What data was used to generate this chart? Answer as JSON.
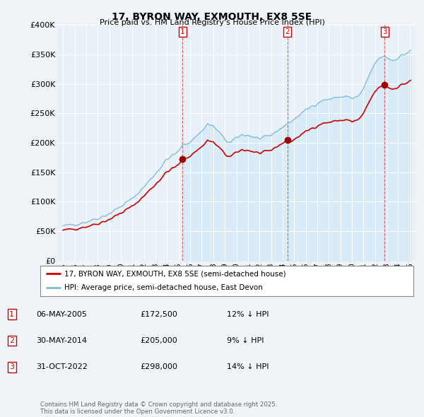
{
  "title": "17, BYRON WAY, EXMOUTH, EX8 5SE",
  "subtitle": "Price paid vs. HM Land Registry's House Price Index (HPI)",
  "sale_color": "#cc0000",
  "hpi_color": "#7ab8d8",
  "hpi_fill_color": "#cce0f0",
  "background_color": "#f0f4f8",
  "plot_bg": "#e8f0f8",
  "ylim": [
    0,
    400000
  ],
  "yticks": [
    0,
    50000,
    100000,
    150000,
    200000,
    250000,
    300000,
    350000,
    400000
  ],
  "ytick_labels": [
    "£0",
    "£50K",
    "£100K",
    "£150K",
    "£200K",
    "£250K",
    "£300K",
    "£350K",
    "£400K"
  ],
  "sale_dates": [
    2005.35,
    2014.42,
    2022.83
  ],
  "sale_prices": [
    172500,
    205000,
    298000
  ],
  "sale_numbers": [
    "1",
    "2",
    "3"
  ],
  "legend_sale": "17, BYRON WAY, EXMOUTH, EX8 5SE (semi-detached house)",
  "legend_hpi": "HPI: Average price, semi-detached house, East Devon",
  "table_rows": [
    [
      "1",
      "06-MAY-2005",
      "£172,500",
      "12% ↓ HPI"
    ],
    [
      "2",
      "30-MAY-2014",
      "£205,000",
      "9% ↓ HPI"
    ],
    [
      "3",
      "31-OCT-2022",
      "£298,000",
      "14% ↓ HPI"
    ]
  ],
  "footnote": "Contains HM Land Registry data © Crown copyright and database right 2025.\nThis data is licensed under the Open Government Licence v3.0.",
  "xmin": 1994.5,
  "xmax": 2025.5,
  "xticks_years": [
    1995,
    1996,
    1997,
    1998,
    1999,
    2000,
    2001,
    2002,
    2003,
    2004,
    2005,
    2006,
    2007,
    2008,
    2009,
    2010,
    2011,
    2012,
    2013,
    2014,
    2015,
    2016,
    2017,
    2018,
    2019,
    2020,
    2021,
    2022,
    2023,
    2024,
    2025
  ]
}
